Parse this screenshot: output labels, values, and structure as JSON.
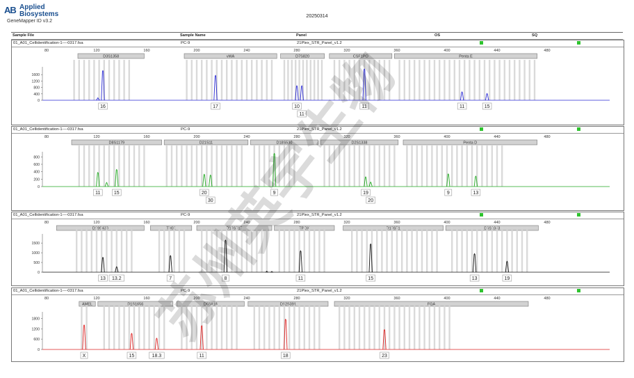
{
  "header": {
    "logo_mark": "AB",
    "logo_line1": "Applied",
    "logo_line2": "Biosystems",
    "app_title": "GeneMapper ID v3.2",
    "date": "20250314"
  },
  "columns": {
    "sample_file": "Sample File",
    "sample_name": "Sample Name",
    "panel": "Panel",
    "os": "OS",
    "sq": "SQ"
  },
  "watermark": "苏州英宇生物",
  "colors": {
    "blue": "#2a2ad4",
    "green": "#22a822",
    "black": "#111111",
    "red": "#dd2222",
    "quality_ok": "#2ec32e",
    "allele_bar": "#d4d4d4"
  },
  "panels": [
    {
      "sample_file": "01_A01_Cellidentification-1----0317.fsa",
      "sample_name": "PC-9",
      "panel": "21Plex_STR_Panel_v1.2",
      "color": "#2a2ad4",
      "y_ticks": [
        "1600",
        "1200",
        "800",
        "400",
        "0"
      ],
      "y_max": 2000,
      "x_ticks": [
        "80",
        "120",
        "160",
        "200",
        "240",
        "280",
        "320",
        "360",
        "400",
        "440",
        "480"
      ],
      "markers": [
        {
          "name": "D3S1358",
          "start": 105,
          "end": 158
        },
        {
          "name": "vWA",
          "start": 190,
          "end": 264
        },
        {
          "name": "D7S820",
          "start": 267,
          "end": 302
        },
        {
          "name": "CSF1PO",
          "start": 306,
          "end": 356
        },
        {
          "name": "Penta E",
          "start": 358,
          "end": 472
        }
      ],
      "peaks": [
        {
          "size": 121,
          "height": 150
        },
        {
          "size": 125,
          "height": 1850
        },
        {
          "size": 215,
          "height": 1550
        },
        {
          "size": 280,
          "height": 900
        },
        {
          "size": 284,
          "height": 900
        },
        {
          "size": 334,
          "height": 1950
        },
        {
          "size": 412,
          "height": 520
        },
        {
          "size": 432,
          "height": 420
        }
      ],
      "allele_labels": [
        {
          "label": "16",
          "size": 125,
          "row": 0
        },
        {
          "label": "17",
          "size": 215,
          "row": 0
        },
        {
          "label": "10",
          "size": 280,
          "row": 0
        },
        {
          "label": "11",
          "size": 284,
          "row": 1
        },
        {
          "label": "11",
          "size": 334,
          "row": 0
        },
        {
          "label": "11",
          "size": 412,
          "row": 0
        },
        {
          "label": "15",
          "size": 432,
          "row": 0
        }
      ],
      "bin_pos": [
        102,
        106,
        110,
        114,
        118,
        122,
        126,
        130,
        134,
        138,
        142,
        146,
        192,
        196,
        200,
        204,
        208,
        212,
        216,
        220,
        224,
        228,
        232,
        236,
        240,
        244,
        248,
        252,
        256,
        260,
        270,
        273,
        276,
        279,
        282,
        285,
        288,
        291,
        294,
        297,
        300,
        310,
        314,
        318,
        322,
        326,
        330,
        334,
        338,
        342,
        346,
        350,
        354,
        362,
        366,
        370,
        374,
        378,
        382,
        386,
        390,
        394,
        398,
        402,
        406,
        410,
        414,
        418,
        422,
        426,
        430,
        434,
        438,
        442,
        446,
        450,
        454,
        458,
        462,
        466,
        470
      ]
    },
    {
      "sample_file": "01_A01_Cellidentification-1----0317.fsa",
      "sample_name": "PC-9",
      "panel": "21Plex_STR_Panel_v1.2",
      "color": "#22a822",
      "y_ticks": [
        "800",
        "600",
        "400",
        "200",
        "0"
      ],
      "y_max": 900,
      "x_ticks": [
        "80",
        "120",
        "160",
        "200",
        "240",
        "280",
        "320",
        "360",
        "400",
        "440",
        "480"
      ],
      "markers": [
        {
          "name": "D8S1179",
          "start": 100,
          "end": 172
        },
        {
          "name": "D21S11",
          "start": 174,
          "end": 241
        },
        {
          "name": "D18S530",
          "start": 243,
          "end": 297
        },
        {
          "name": "D2S1338",
          "start": 299,
          "end": 361
        },
        {
          "name": "Penta D",
          "start": 365,
          "end": 472
        }
      ],
      "peaks": [
        {
          "size": 121,
          "height": 380
        },
        {
          "size": 128,
          "height": 110
        },
        {
          "size": 136,
          "height": 460
        },
        {
          "size": 206,
          "height": 330
        },
        {
          "size": 211,
          "height": 310
        },
        {
          "size": 262,
          "height": 890
        },
        {
          "size": 335,
          "height": 260
        },
        {
          "size": 339,
          "height": 120
        },
        {
          "size": 401,
          "height": 340
        },
        {
          "size": 423,
          "height": 280
        }
      ],
      "allele_labels": [
        {
          "label": "11",
          "size": 121,
          "row": 0
        },
        {
          "label": "15",
          "size": 136,
          "row": 0
        },
        {
          "label": "20",
          "size": 206,
          "row": 0
        },
        {
          "label": "30",
          "size": 211,
          "row": 1
        },
        {
          "label": "9",
          "size": 262,
          "row": 0
        },
        {
          "label": "19",
          "size": 335,
          "row": 0
        },
        {
          "label": "20",
          "size": 339,
          "row": 1
        },
        {
          "label": "9",
          "size": 401,
          "row": 0
        },
        {
          "label": "13",
          "size": 423,
          "row": 0
        }
      ],
      "bin_pos": [
        106,
        110,
        114,
        118,
        122,
        126,
        130,
        134,
        138,
        142,
        146,
        150,
        154,
        158,
        176,
        180,
        184,
        188,
        192,
        196,
        200,
        204,
        208,
        212,
        216,
        220,
        224,
        228,
        232,
        236,
        246,
        250,
        254,
        258,
        262,
        266,
        270,
        274,
        278,
        302,
        306,
        310,
        314,
        318,
        322,
        326,
        330,
        334,
        338,
        342,
        346,
        350,
        354,
        358,
        368,
        372,
        376,
        380,
        384,
        388,
        392,
        396,
        400,
        404,
        408,
        412,
        416,
        420,
        424,
        428,
        432,
        436,
        440,
        444
      ]
    },
    {
      "sample_file": "01_A01_Cellidentification-1----0317.fsa",
      "sample_name": "PC-9",
      "panel": "21Plex_STR_Panel_v1.2",
      "color": "#111111",
      "y_ticks": [
        "1500",
        "1000",
        "500",
        "0"
      ],
      "y_max": 1900,
      "x_ticks": [
        "80",
        "120",
        "160",
        "200",
        "240",
        "280",
        "320",
        "360",
        "400",
        "440",
        "480"
      ],
      "markers": [
        {
          "name": "D19S433",
          "start": 88,
          "end": 158
        },
        {
          "name": "TH01",
          "start": 163,
          "end": 196
        },
        {
          "name": "D13S317",
          "start": 200,
          "end": 260
        },
        {
          "name": "TPOX",
          "start": 262,
          "end": 310
        },
        {
          "name": "D18S51",
          "start": 317,
          "end": 397
        },
        {
          "name": "D6S1043",
          "start": 399,
          "end": 473
        }
      ],
      "peaks": [
        {
          "size": 125,
          "height": 760
        },
        {
          "size": 136,
          "height": 280
        },
        {
          "size": 179,
          "height": 850
        },
        {
          "size": 223,
          "height": 1650
        },
        {
          "size": 256,
          "height": 50
        },
        {
          "size": 260,
          "height": 40
        },
        {
          "size": 283,
          "height": 1100
        },
        {
          "size": 339,
          "height": 1450
        },
        {
          "size": 422,
          "height": 950
        },
        {
          "size": 448,
          "height": 560
        }
      ],
      "allele_labels": [
        {
          "label": "13",
          "size": 125,
          "row": 0
        },
        {
          "label": "13.2",
          "size": 136,
          "row": 0
        },
        {
          "label": "7",
          "size": 179,
          "row": 0
        },
        {
          "label": "8",
          "size": 223,
          "row": 0
        },
        {
          "label": "11",
          "size": 283,
          "row": 0
        },
        {
          "label": "15",
          "size": 339,
          "row": 0
        },
        {
          "label": "13",
          "size": 422,
          "row": 0
        },
        {
          "label": "19",
          "size": 448,
          "row": 0
        }
      ],
      "bin_pos": [
        104,
        108,
        112,
        116,
        120,
        124,
        128,
        132,
        136,
        140,
        144,
        148,
        170,
        174,
        178,
        182,
        186,
        190,
        204,
        208,
        212,
        216,
        220,
        224,
        228,
        232,
        236,
        240,
        244,
        248,
        252,
        256,
        266,
        270,
        274,
        278,
        282,
        286,
        290,
        294,
        298,
        302,
        324,
        328,
        332,
        336,
        340,
        344,
        348,
        352,
        356,
        360,
        364,
        368,
        372,
        376,
        380,
        384,
        388,
        392,
        404,
        408,
        412,
        416,
        420,
        424,
        428,
        432,
        436,
        440,
        444,
        448,
        452,
        456,
        460,
        464
      ]
    },
    {
      "sample_file": "01_A01_Cellidentification-1----0317.fsa",
      "sample_name": "PC-9",
      "panel": "21Plex_STR_Panel_v1.2",
      "color": "#dd2222",
      "y_ticks": [
        "1800",
        "1200",
        "600",
        "0"
      ],
      "y_max": 2100,
      "x_ticks": [
        "80",
        "120",
        "160",
        "200",
        "240",
        "280",
        "320",
        "360",
        "400",
        "440",
        "480"
      ],
      "markers": [
        {
          "name": "AMEL",
          "start": 106,
          "end": 119
        },
        {
          "name": "D1S1656",
          "start": 121,
          "end": 181
        },
        {
          "name": "D5S818",
          "start": 184,
          "end": 238
        },
        {
          "name": "D12S391",
          "start": 241,
          "end": 305
        },
        {
          "name": "FGA",
          "start": 310,
          "end": 465
        }
      ],
      "peaks": [
        {
          "size": 110,
          "height": 1420
        },
        {
          "size": 148,
          "height": 930
        },
        {
          "size": 168,
          "height": 650
        },
        {
          "size": 204,
          "height": 1380
        },
        {
          "size": 271,
          "height": 1750
        },
        {
          "size": 350,
          "height": 1150
        }
      ],
      "allele_labels": [
        {
          "label": "X",
          "size": 110,
          "row": 0
        },
        {
          "label": "15",
          "size": 148,
          "row": 0
        },
        {
          "label": "18.3",
          "size": 168,
          "row": 0
        },
        {
          "label": "11",
          "size": 204,
          "row": 0
        },
        {
          "label": "18",
          "size": 271,
          "row": 0
        },
        {
          "label": "23",
          "size": 350,
          "row": 0
        }
      ],
      "bin_pos": [
        108,
        112,
        126,
        130,
        134,
        138,
        142,
        146,
        150,
        154,
        158,
        162,
        166,
        170,
        174,
        188,
        192,
        196,
        200,
        204,
        208,
        212,
        216,
        220,
        224,
        228,
        232,
        246,
        250,
        254,
        258,
        262,
        266,
        270,
        274,
        278,
        282,
        286,
        290,
        294,
        298,
        314,
        318,
        322,
        326,
        330,
        334,
        338,
        342,
        346,
        350,
        354,
        358,
        362,
        366,
        370,
        374,
        378,
        382,
        386,
        390,
        394,
        398,
        402
      ]
    }
  ]
}
